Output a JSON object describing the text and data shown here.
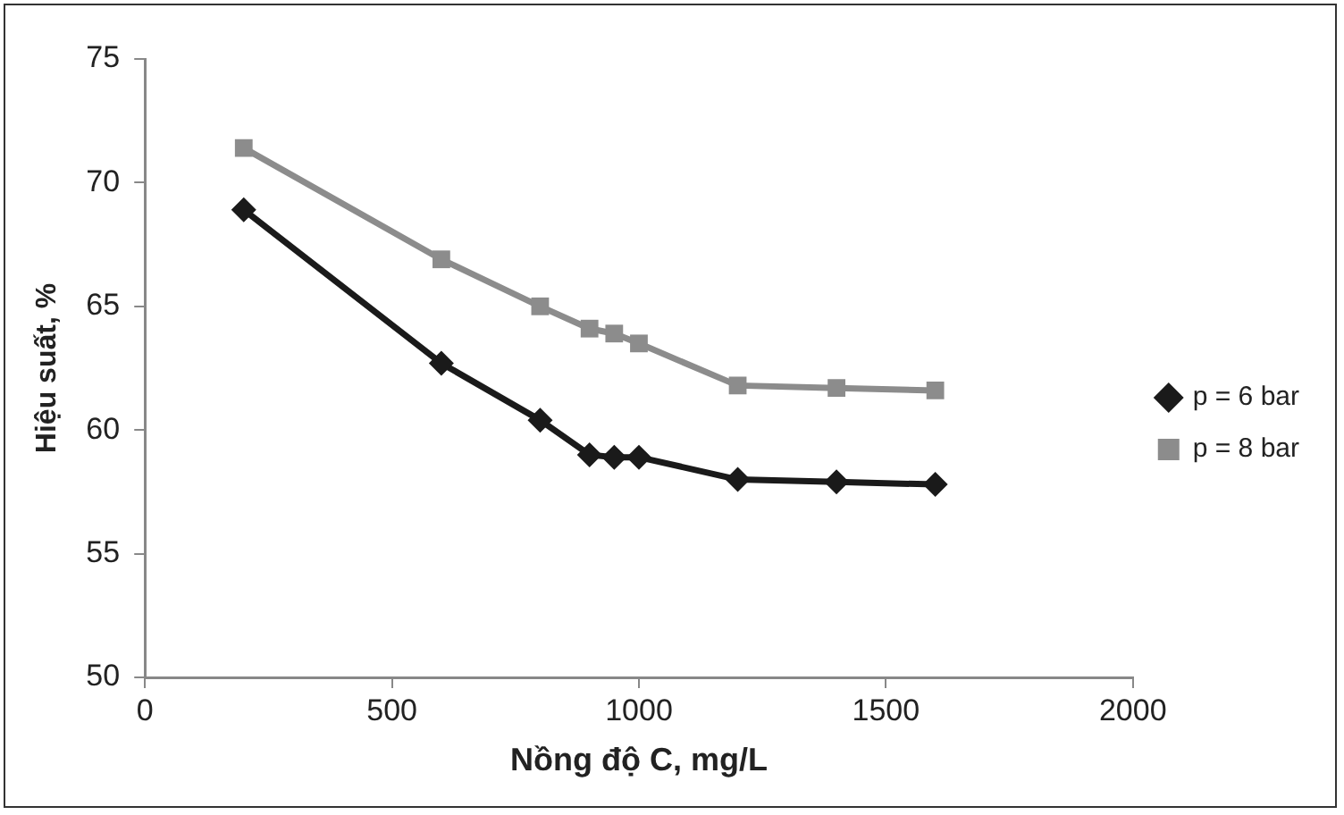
{
  "chart_data": {
    "type": "line",
    "xlabel": "Nồng độ C, mg/L",
    "ylabel": "Hiệu suất, %",
    "x": [
      200,
      600,
      800,
      900,
      950,
      1000,
      1200,
      1400,
      1600
    ],
    "series": [
      {
        "name": "p = 6 bar",
        "color": "#1a1a1a",
        "marker": "diamond",
        "values": [
          68.9,
          62.7,
          60.4,
          59.0,
          58.9,
          58.9,
          58.0,
          57.9,
          57.8
        ]
      },
      {
        "name": "p = 8 bar",
        "color": "#8c8c8c",
        "marker": "square",
        "values": [
          71.4,
          66.9,
          65.0,
          64.1,
          63.9,
          63.5,
          61.8,
          61.7,
          61.6
        ]
      }
    ],
    "xlim": [
      0,
      2000
    ],
    "xticks": [
      0,
      500,
      1000,
      1500,
      2000
    ],
    "ylim": [
      50,
      75
    ],
    "yticks": [
      50,
      55,
      60,
      65,
      70,
      75
    ],
    "grid": false,
    "legend": "right",
    "line_style": "solid"
  }
}
